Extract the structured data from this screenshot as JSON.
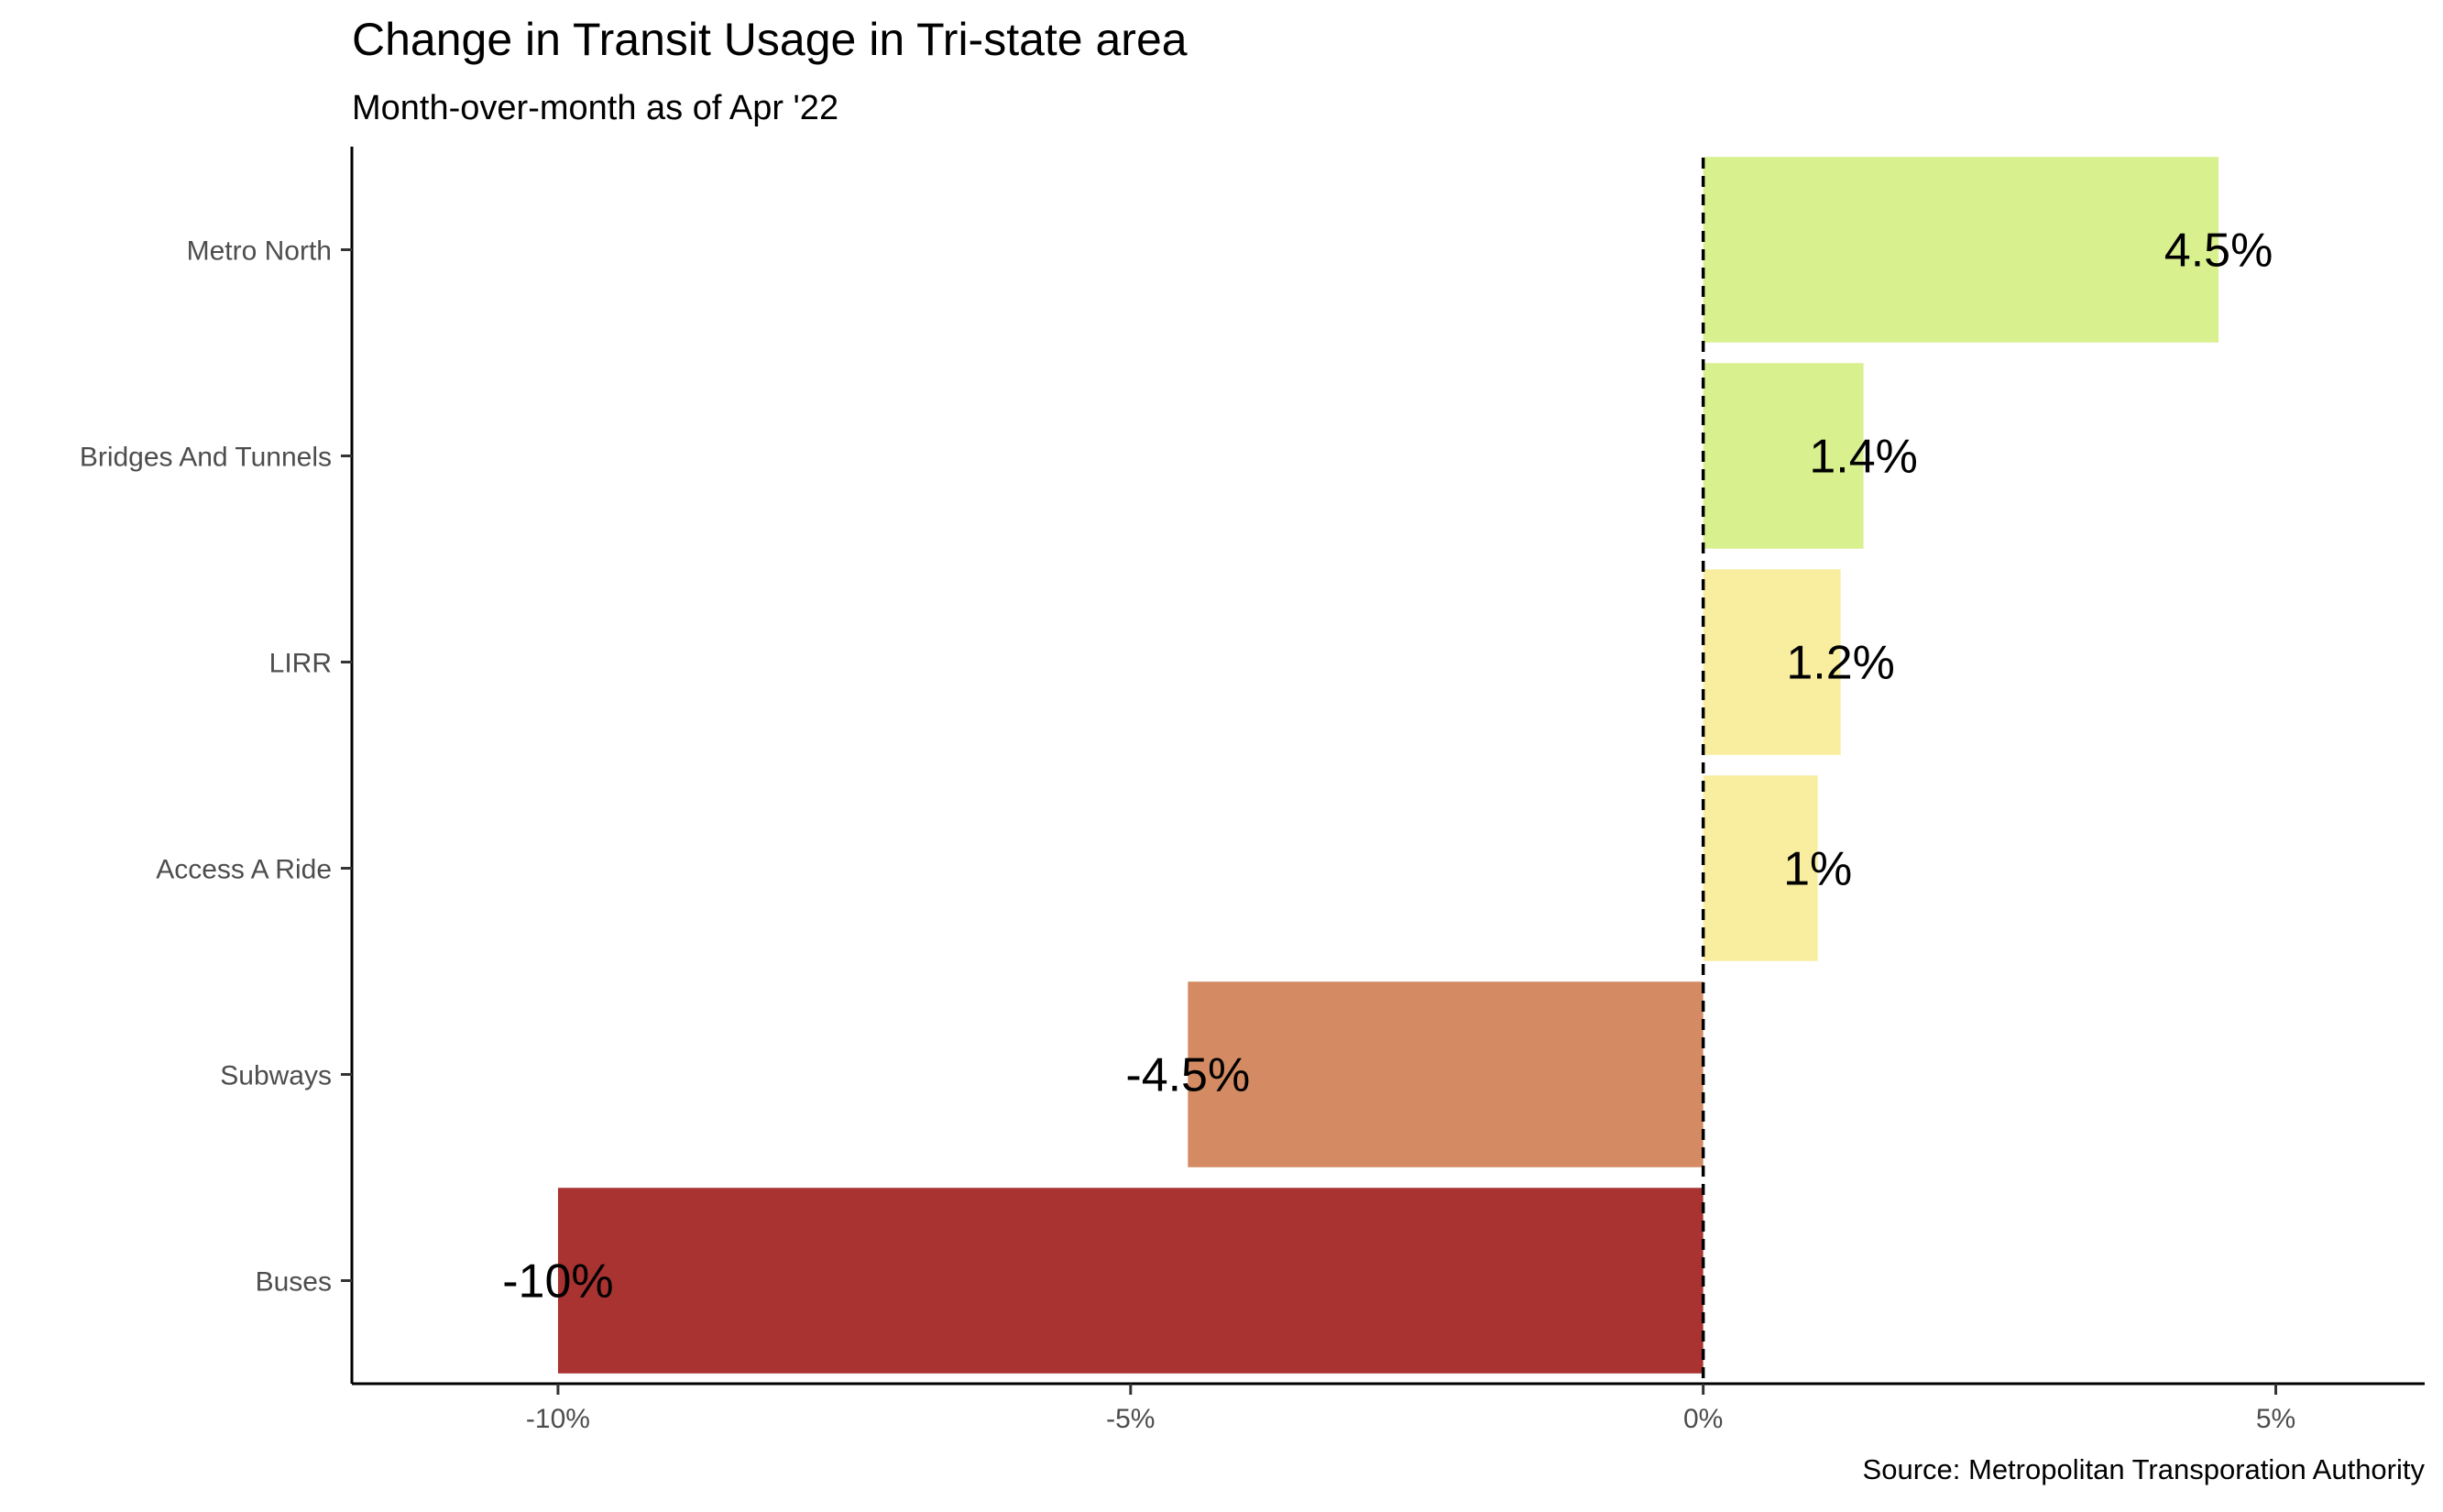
{
  "chart_data": {
    "type": "bar",
    "orientation": "horizontal",
    "title": "Change in Transit Usage in Tri-state area",
    "subtitle": "Month-over-month as of Apr '22",
    "caption": "Source: Metropolitan Transporation Authority",
    "categories": [
      "Metro North",
      "Bridges And Tunnels",
      "LIRR",
      "Access A Ride",
      "Subways",
      "Buses"
    ],
    "values": [
      4.5,
      1.4,
      1.2,
      1.0,
      -4.5,
      -10.0
    ],
    "data_labels": [
      "4.5%",
      "1.4%",
      "1.2%",
      "1%",
      "-4.5%",
      "-10%"
    ],
    "bar_colors": [
      "#d9f08f",
      "#d9f08f",
      "#f9eda0",
      "#f9eda0",
      "#d48b64",
      "#a83331"
    ],
    "xlabel": "",
    "ylabel": "",
    "xlim": [
      -11.8,
      6.3
    ],
    "x_ticks": [
      -10,
      -5,
      0,
      5
    ],
    "x_tick_labels": [
      "-10%",
      "-5%",
      "0%",
      "5%"
    ],
    "reference_line": {
      "value": 0,
      "style": "dashed"
    },
    "grid": false,
    "legend": "none"
  }
}
